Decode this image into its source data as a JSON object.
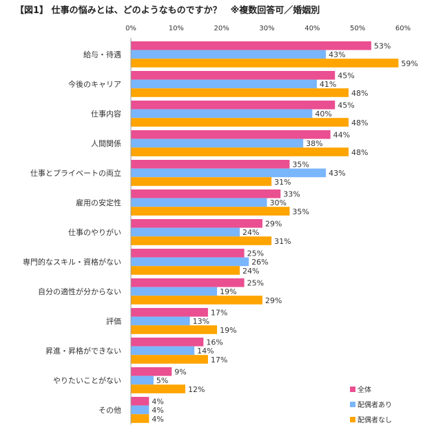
{
  "chart_data": {
    "type": "bar",
    "orientation": "horizontal",
    "title": "【図1】 仕事の悩みとは、どのようなものですか？　※複数回答可／婚姻別",
    "xlabel": "",
    "ylabel": "",
    "xlim": [
      0,
      60
    ],
    "ticks": [
      "0%",
      "10%",
      "20%",
      "30%",
      "40%",
      "50%",
      "60%"
    ],
    "tick_values": [
      0,
      10,
      20,
      30,
      40,
      50,
      60
    ],
    "categories": [
      "給与・待遇",
      "今後のキャリア",
      "仕事内容",
      "人間関係",
      "仕事とプライベートの両立",
      "雇用の安定性",
      "仕事のやりがい",
      "専門的なスキル・資格がない",
      "自分の適性が分からない",
      "評価",
      "昇進・昇格ができない",
      "やりたいことがない",
      "その他"
    ],
    "series": [
      {
        "name": "全体",
        "color": "#ea4f91",
        "values": [
          53,
          45,
          45,
          44,
          35,
          33,
          29,
          25,
          25,
          17,
          16,
          9,
          4
        ]
      },
      {
        "name": "配偶者あり",
        "color": "#7ab6fb",
        "values": [
          43,
          41,
          40,
          38,
          43,
          30,
          24,
          26,
          19,
          13,
          14,
          5,
          4
        ]
      },
      {
        "name": "配偶者なし",
        "color": "#ffa400",
        "values": [
          59,
          48,
          48,
          48,
          31,
          35,
          31,
          24,
          29,
          19,
          17,
          12,
          4
        ]
      }
    ],
    "legend_position": "bottom-right",
    "value_suffix": "%"
  }
}
